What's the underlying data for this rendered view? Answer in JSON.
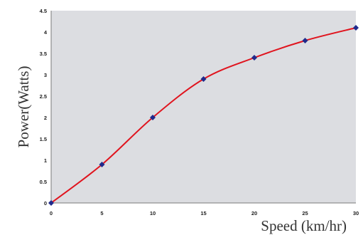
{
  "chart_data": {
    "type": "line",
    "title": "",
    "xlabel": "Speed (km/hr)",
    "ylabel": "Power(Watts)",
    "xlim": [
      0,
      30
    ],
    "ylim": [
      0,
      4.5
    ],
    "x_ticks": [
      0,
      5,
      10,
      15,
      20,
      25,
      30
    ],
    "y_ticks": [
      0,
      0.5,
      1,
      1.5,
      2,
      2.5,
      3,
      3.5,
      4,
      4.5
    ],
    "grid": false,
    "legend": "none",
    "series": [
      {
        "x": [
          0,
          5,
          10,
          15,
          20,
          25,
          30
        ],
        "y": [
          0,
          0.9,
          2.0,
          2.9,
          3.4,
          3.8,
          4.1
        ],
        "line_color": "#e0141e",
        "marker_color": "#1f2a8c",
        "marker": "diamond",
        "smooth": true
      }
    ],
    "plot_background": "#dcdde1"
  }
}
